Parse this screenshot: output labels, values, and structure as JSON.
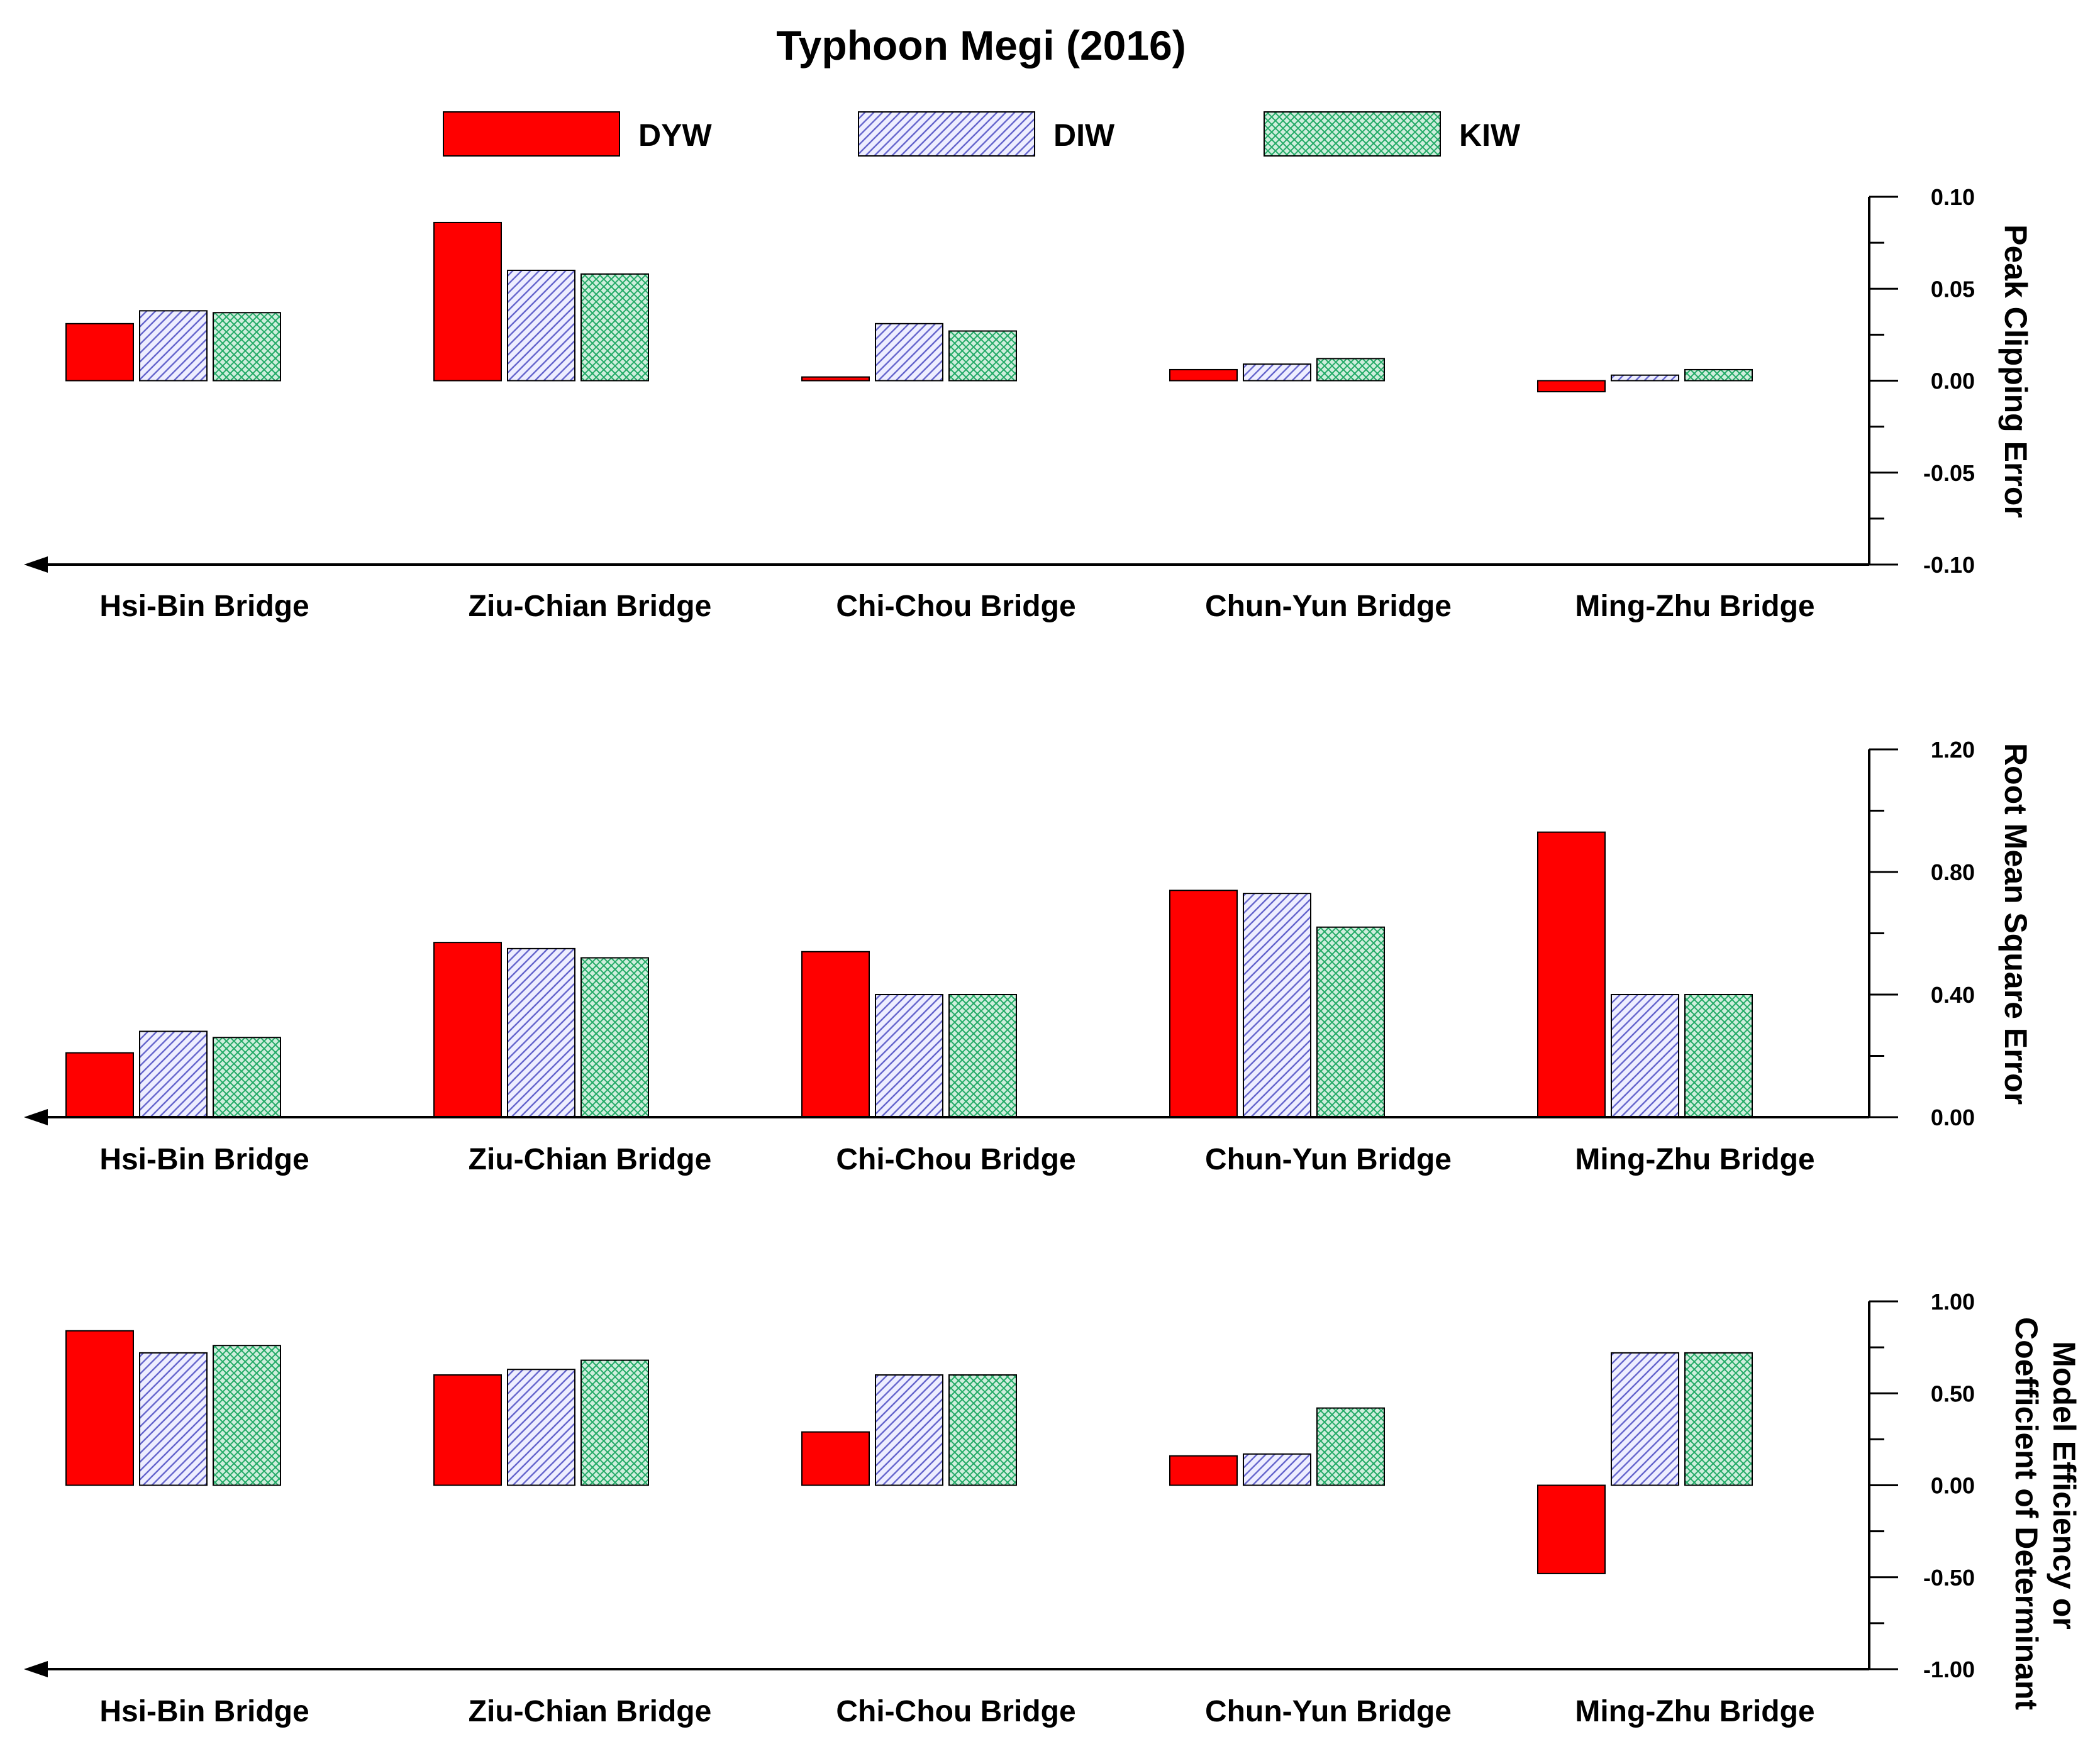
{
  "chart_data": [
    {
      "type": "bar",
      "title": "Typhoon Megi (2016)",
      "categories": [
        "Hsi-Bin Bridge",
        "Ziu-Chian Bridge",
        "Chi-Chou Bridge",
        "Chun-Yun Bridge",
        "Ming-Zhu Bridge"
      ],
      "series": [
        {
          "name": "DYW",
          "values": [
            0.031,
            0.086,
            0.002,
            0.006,
            -0.006
          ]
        },
        {
          "name": "DIW",
          "values": [
            0.038,
            0.06,
            0.031,
            0.009,
            0.003
          ]
        },
        {
          "name": "KIW",
          "values": [
            0.037,
            0.058,
            0.027,
            0.012,
            0.006
          ]
        }
      ],
      "ylabel": "Peak Clipping Error",
      "ylim": [
        -0.1,
        0.1
      ],
      "yticks": [
        "0.10",
        "0.05",
        "0.00",
        "-0.05",
        "-0.10"
      ],
      "legend": [
        "DYW",
        "DIW",
        "KIW"
      ],
      "legend_position": "top-center",
      "grid": false
    },
    {
      "type": "bar",
      "categories": [
        "Hsi-Bin Bridge",
        "Ziu-Chian Bridge",
        "Chi-Chou Bridge",
        "Chun-Yun Bridge",
        "Ming-Zhu Bridge"
      ],
      "series": [
        {
          "name": "DYW",
          "values": [
            0.21,
            0.57,
            0.54,
            0.74,
            0.93
          ]
        },
        {
          "name": "DIW",
          "values": [
            0.28,
            0.55,
            0.4,
            0.73,
            0.4
          ]
        },
        {
          "name": "KIW",
          "values": [
            0.26,
            0.52,
            0.4,
            0.62,
            0.4
          ]
        }
      ],
      "ylabel": "Root Mean Square Error",
      "ylim": [
        0.0,
        1.2
      ],
      "yticks": [
        "1.20",
        "0.80",
        "0.40",
        "0.00"
      ],
      "grid": false
    },
    {
      "type": "bar",
      "categories": [
        "Hsi-Bin Bridge",
        "Ziu-Chian Bridge",
        "Chi-Chou Bridge",
        "Chun-Yun Bridge",
        "Ming-Zhu Bridge"
      ],
      "series": [
        {
          "name": "DYW",
          "values": [
            0.84,
            0.6,
            0.29,
            0.16,
            -0.48
          ]
        },
        {
          "name": "DIW",
          "values": [
            0.72,
            0.63,
            0.6,
            0.17,
            0.72
          ]
        },
        {
          "name": "KIW",
          "values": [
            0.76,
            0.68,
            0.6,
            0.42,
            0.72
          ]
        }
      ],
      "ylabel": "Model Efficiency or Coefficient of Determinant",
      "ylabel_lines": [
        "Model Efficiency or",
        "Coefficient of Determinant"
      ],
      "ylim": [
        -1.0,
        1.0
      ],
      "yticks": [
        "1.00",
        "0.50",
        "0.00",
        "-0.50",
        "-1.00"
      ],
      "grid": false
    }
  ],
  "colors": {
    "DYW": "#ff0000",
    "DIW_fill": "#eeeeff",
    "DIW_hatch": "#6666cc",
    "KIW_fill": "#cfeedd",
    "KIW_hatch": "#22aa66",
    "axis": "#000000"
  }
}
